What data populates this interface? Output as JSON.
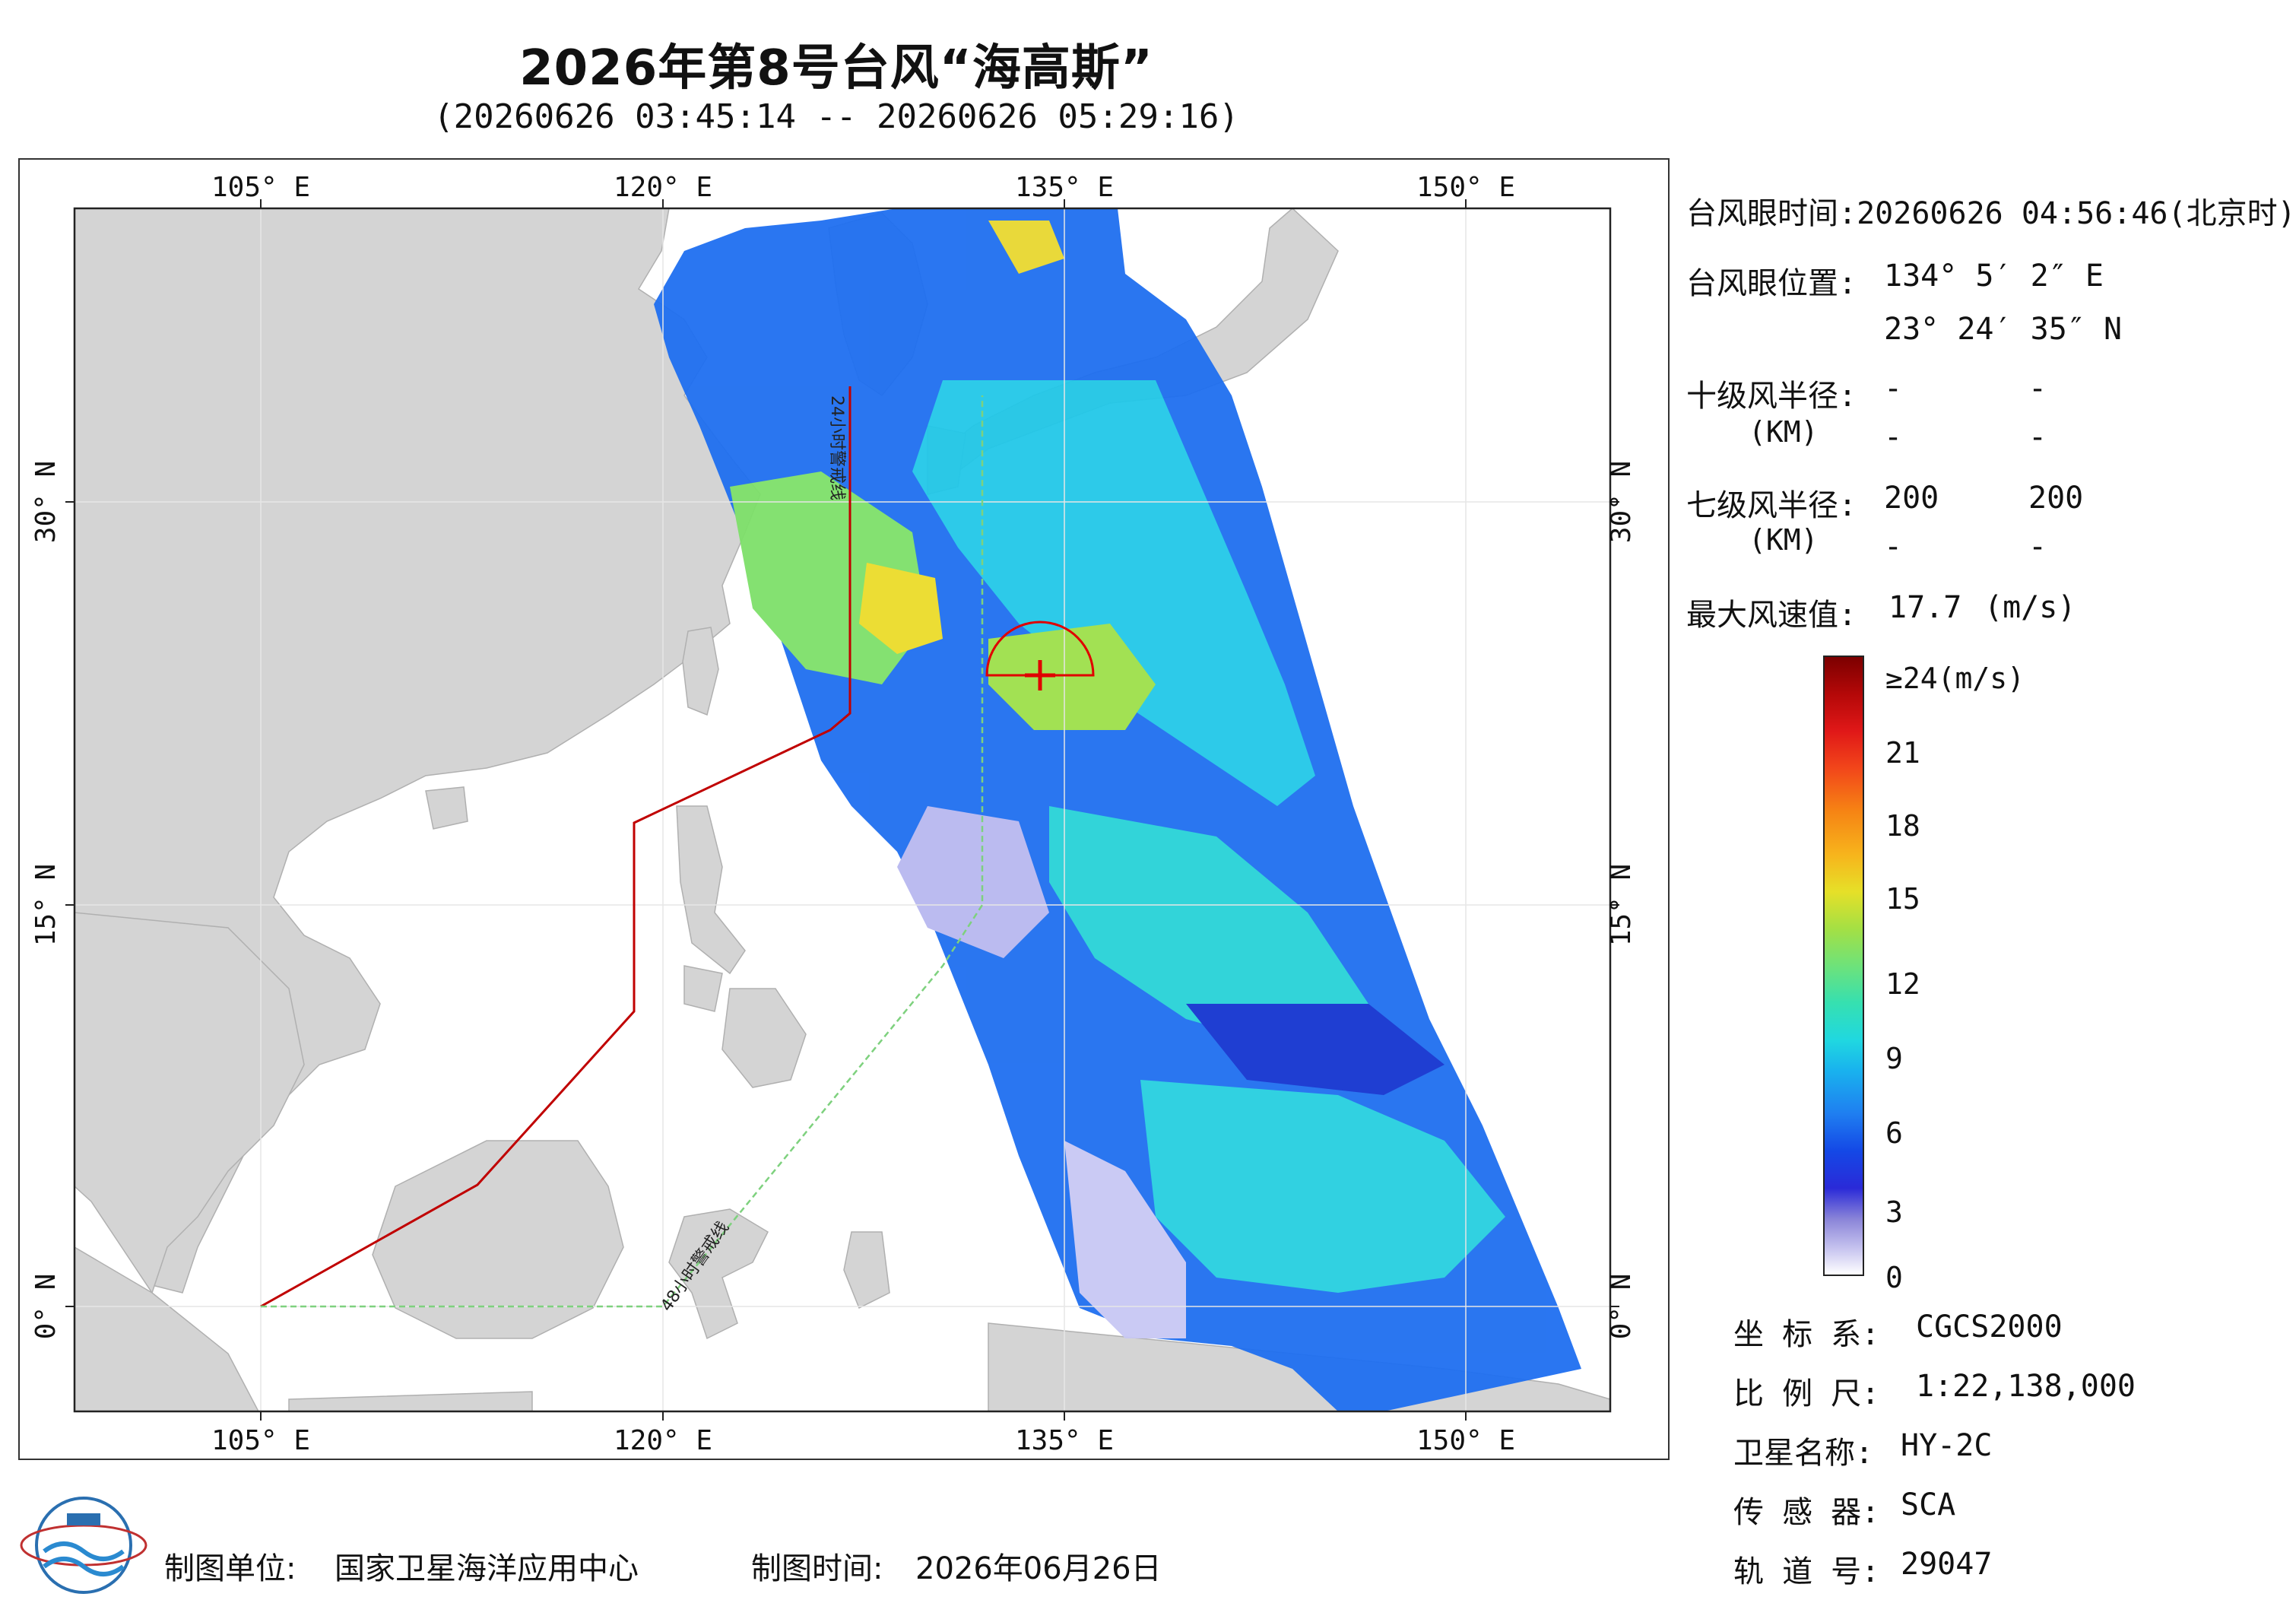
{
  "title": "2026年第8号台风“海高斯”",
  "subtitle": "(20260626 03:45:14 -- 20260626 05:29:16)",
  "map": {
    "lon_top_labels": [
      "105° E",
      "120° E",
      "135° E",
      "150° E"
    ],
    "lon_bottom_labels": [
      "105° E",
      "120° E",
      "135° E",
      "150° E"
    ],
    "lat_left_labels": [
      "30° N",
      "15° N",
      "0° N"
    ],
    "lat_right_labels": [
      "30° N",
      "15° N",
      "0° N"
    ],
    "line_24h_label": "24小时警戒线",
    "line_48h_label": "48小时警戒线",
    "line_24h_color": "#c00000",
    "line_48h_color": "#7ed17e",
    "land_color": "#d4d4d4",
    "typhoon_marker_color": "#e00000"
  },
  "info": {
    "eye_time_label": "台风眼时间:",
    "eye_time_value": "20260626 04:56:46(北京时)",
    "eye_pos_label": "台风眼位置:",
    "eye_lon": "134° 5′ 2″ E",
    "eye_lat": "23° 24′ 35″ N",
    "r10_label": "十级风半径:",
    "r10_unit": "(KM)",
    "r10_values": [
      "-",
      "-",
      "-",
      "-"
    ],
    "r7_label": "七级风半径:",
    "r7_unit": "(KM)",
    "r7_values": [
      "200",
      "200",
      "-",
      "-"
    ],
    "max_wind_label": "最大风速值:",
    "max_wind_value": "17.7",
    "max_wind_unit": "(m/s)"
  },
  "colorbar": {
    "top_label": "≥24(m/s)",
    "ticks": [
      "21",
      "18",
      "15",
      "12",
      "9",
      "6",
      "3",
      "0"
    ],
    "range": [
      0,
      24
    ]
  },
  "meta": {
    "coord_label": "坐 标 系:",
    "coord_value": "CGCS2000",
    "scale_label": "比 例 尺:",
    "scale_value": "1:22,138,000",
    "sat_label": "卫星名称:",
    "sat_value": "HY-2C",
    "sensor_label": "传 感 器:",
    "sensor_value": "SCA",
    "orbit_label": "轨 道 号:",
    "orbit_value": "29047"
  },
  "footer": {
    "org_label": "制图单位:",
    "org_value": "国家卫星海洋应用中心",
    "date_label": "制图时间:",
    "date_value": "2026年06月26日"
  }
}
